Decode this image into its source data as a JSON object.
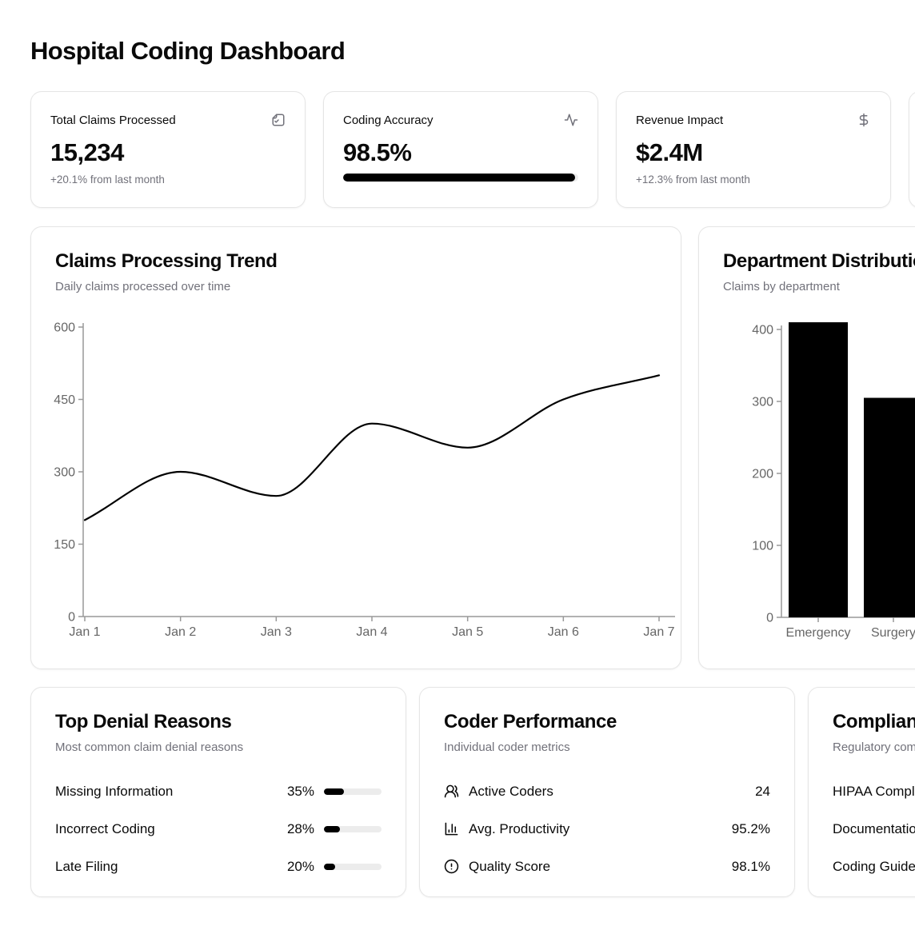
{
  "page": {
    "title": "Hospital Coding Dashboard"
  },
  "colors": {
    "accent": "#000000",
    "muted_text": "#71717a",
    "card_border": "#e5e5e5",
    "axis_line": "#999999",
    "axis_label": "#666666",
    "progress_track": "#ececec"
  },
  "stat_cards": [
    {
      "label": "Total Claims Processed",
      "icon": "file-check-icon",
      "value": "15,234",
      "change": "+20.1% from last month"
    },
    {
      "label": "Coding Accuracy",
      "icon": "activity-icon",
      "value": "98.5%",
      "progress_pct": 98.5
    },
    {
      "label": "Revenue Impact",
      "icon": "dollar-icon",
      "value": "$2.4M",
      "change": "+12.3% from last month"
    }
  ],
  "chart_data": [
    {
      "type": "line",
      "title": "Claims Processing Trend",
      "subtitle": "Daily claims processed over time",
      "x": [
        "Jan 1",
        "Jan 2",
        "Jan 3",
        "Jan 4",
        "Jan 5",
        "Jan 6",
        "Jan 7"
      ],
      "values": [
        200,
        300,
        250,
        400,
        350,
        450,
        500
      ],
      "ylim": [
        0,
        600
      ],
      "yticks": [
        0,
        150,
        300,
        450,
        600
      ],
      "grid": false,
      "legend": false,
      "line_color": "#000000"
    },
    {
      "type": "bar",
      "title": "Department Distribution",
      "subtitle": "Claims by department",
      "categories": [
        "Emergency",
        "Surgery"
      ],
      "values": [
        410,
        305
      ],
      "ylim": [
        0,
        400
      ],
      "yticks": [
        0,
        100,
        200,
        300,
        400
      ],
      "grid": false,
      "legend": false,
      "bar_color": "#000000"
    }
  ],
  "top_denial_reasons": {
    "title": "Top Denial Reasons",
    "subtitle": "Most common claim denial reasons",
    "rows": [
      {
        "label": "Missing Information",
        "pct_label": "35%",
        "value": 35
      },
      {
        "label": "Incorrect Coding",
        "pct_label": "28%",
        "value": 28
      },
      {
        "label": "Late Filing",
        "pct_label": "20%",
        "value": 20
      }
    ]
  },
  "coder_performance": {
    "title": "Coder Performance",
    "subtitle": "Individual coder metrics",
    "rows": [
      {
        "icon": "users-icon",
        "label": "Active Coders",
        "value": "24"
      },
      {
        "icon": "bar-chart-icon",
        "label": "Avg. Productivity",
        "value": "95.2%"
      },
      {
        "icon": "alert-circle-icon",
        "label": "Quality Score",
        "value": "98.1%"
      }
    ]
  },
  "compliance_status": {
    "title": "Compliance Status",
    "subtitle": "Regulatory compliance metrics",
    "rows": [
      {
        "label": "HIPAA Compliance"
      },
      {
        "label": "Documentation"
      },
      {
        "label": "Coding Guidelines"
      }
    ]
  }
}
